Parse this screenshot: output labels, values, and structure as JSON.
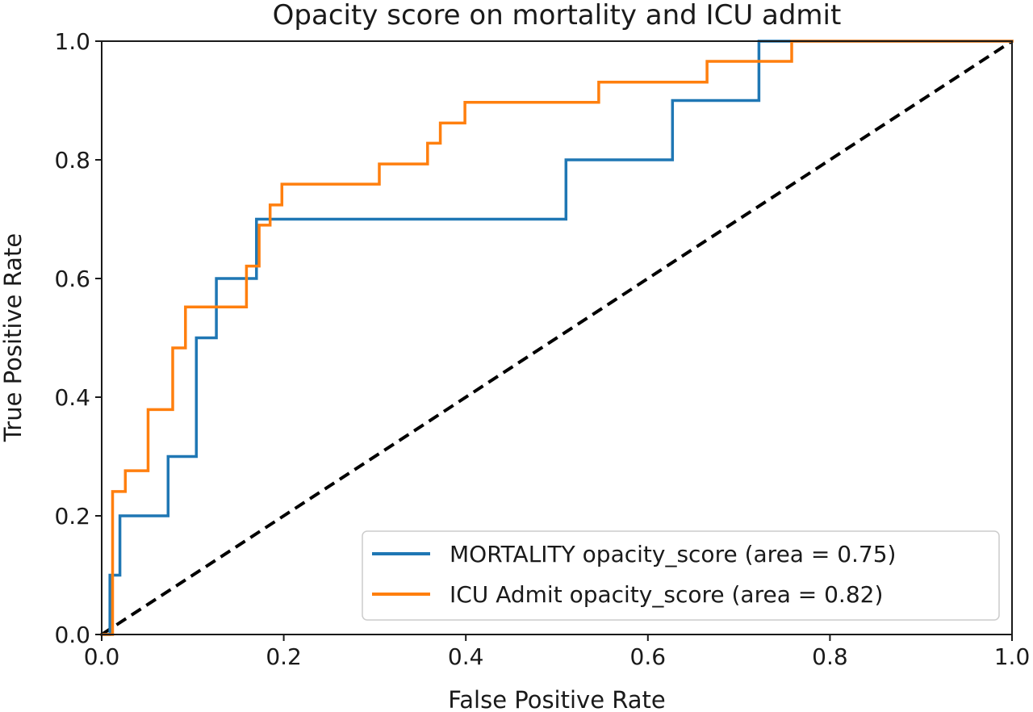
{
  "chart_data": {
    "type": "line",
    "title": "Opacity score on mortality and ICU admit",
    "xlabel": "False Positive Rate",
    "ylabel": "True Positive Rate",
    "xlim": [
      0.0,
      1.0
    ],
    "ylim": [
      0.0,
      1.0
    ],
    "xticks": [
      "0.0",
      "0.2",
      "0.4",
      "0.6",
      "0.8",
      "1.0"
    ],
    "yticks": [
      "0.0",
      "0.2",
      "0.4",
      "0.6",
      "0.8",
      "1.0"
    ],
    "grid": false,
    "legend_position": "lower-right",
    "series": [
      {
        "name": "MORTALITY opacity_score (area = 0.75)",
        "color": "#1f77b4",
        "x": [
          0.0,
          0.009,
          0.009,
          0.02,
          0.02,
          0.073,
          0.073,
          0.104,
          0.104,
          0.126,
          0.126,
          0.17,
          0.17,
          0.51,
          0.51,
          0.627,
          0.627,
          0.722,
          0.722,
          1.0
        ],
        "y": [
          0.0,
          0.0,
          0.1,
          0.1,
          0.2,
          0.2,
          0.3,
          0.3,
          0.5,
          0.5,
          0.6,
          0.6,
          0.7,
          0.7,
          0.8,
          0.8,
          0.9,
          0.9,
          1.0,
          1.0
        ]
      },
      {
        "name": "ICU Admit opacity_score (area = 0.82)",
        "color": "#ff7f0e",
        "x": [
          0.0,
          0.012,
          0.012,
          0.026,
          0.026,
          0.051,
          0.051,
          0.078,
          0.078,
          0.092,
          0.092,
          0.159,
          0.159,
          0.173,
          0.173,
          0.185,
          0.185,
          0.198,
          0.198,
          0.305,
          0.305,
          0.358,
          0.358,
          0.372,
          0.372,
          0.399,
          0.399,
          0.546,
          0.546,
          0.665,
          0.665,
          0.758,
          0.758,
          1.0
        ],
        "y": [
          0.0,
          0.0,
          0.241,
          0.241,
          0.276,
          0.276,
          0.379,
          0.379,
          0.483,
          0.483,
          0.552,
          0.552,
          0.621,
          0.621,
          0.69,
          0.69,
          0.724,
          0.724,
          0.759,
          0.759,
          0.793,
          0.793,
          0.828,
          0.828,
          0.862,
          0.862,
          0.897,
          0.897,
          0.931,
          0.931,
          0.966,
          0.966,
          1.0,
          1.0
        ]
      }
    ],
    "reference_line": {
      "x": [
        0.0,
        1.0
      ],
      "y": [
        0.0,
        1.0
      ],
      "color": "#000000",
      "style": "dashed"
    }
  }
}
